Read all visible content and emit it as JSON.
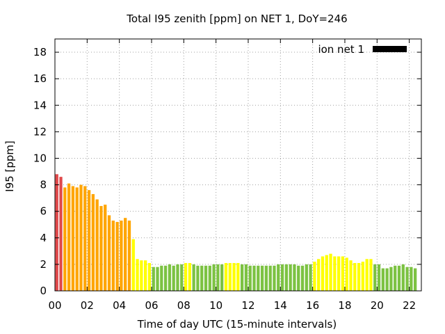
{
  "chart_data": {
    "type": "bar",
    "title": "Total I95 zenith [ppm] on NET 1, DoY=246",
    "xlabel": "Time of day UTC (15-minute intervals)",
    "ylabel": "I95 [ppm]",
    "xlim": [
      0,
      22.75
    ],
    "ylim": [
      0,
      19
    ],
    "yticks": [
      0,
      2,
      4,
      6,
      8,
      10,
      12,
      14,
      16,
      18
    ],
    "xticks": [
      0,
      2,
      4,
      6,
      8,
      10,
      12,
      14,
      16,
      18,
      20,
      22
    ],
    "xtick_labels": [
      "00",
      "02",
      "04",
      "06",
      "08",
      "10",
      "12",
      "14",
      "16",
      "18",
      "20",
      "22"
    ],
    "grid": true,
    "bar_interval_hours": 0.25,
    "legend": {
      "label": "ion net 1",
      "color": "#000000",
      "position": "top-right"
    },
    "colors": {
      "red": "#e0484a",
      "orange": "#ffa500",
      "yellow": "#ffff00",
      "green": "#7cc242"
    },
    "series": [
      {
        "name": "ion net 1",
        "values": [
          8.8,
          8.6,
          7.8,
          8.1,
          7.9,
          7.8,
          8.0,
          7.9,
          7.6,
          7.3,
          6.9,
          6.4,
          6.5,
          5.7,
          5.3,
          5.2,
          5.3,
          5.5,
          5.3,
          3.9,
          2.4,
          2.3,
          2.3,
          2.1,
          1.8,
          1.8,
          1.9,
          1.9,
          2.0,
          1.9,
          2.0,
          2.0,
          2.1,
          2.1,
          2.0,
          1.9,
          1.9,
          1.9,
          1.9,
          2.0,
          2.0,
          2.0,
          2.1,
          2.1,
          2.1,
          2.1,
          2.0,
          2.0,
          1.9,
          1.9,
          1.9,
          1.9,
          1.9,
          1.9,
          1.9,
          2.0,
          2.0,
          2.0,
          2.0,
          2.0,
          1.9,
          1.9,
          2.0,
          2.0,
          2.2,
          2.4,
          2.6,
          2.7,
          2.8,
          2.6,
          2.6,
          2.6,
          2.5,
          2.3,
          2.1,
          2.1,
          2.2,
          2.4,
          2.4,
          2.0,
          2.0,
          1.7,
          1.7,
          1.8,
          1.9,
          1.9,
          2.0,
          1.8,
          1.8,
          1.7
        ],
        "bar_colors": [
          "red",
          "red",
          "orange",
          "orange",
          "orange",
          "orange",
          "orange",
          "orange",
          "orange",
          "orange",
          "orange",
          "orange",
          "orange",
          "orange",
          "orange",
          "orange",
          "orange",
          "orange",
          "orange",
          "yellow",
          "yellow",
          "yellow",
          "yellow",
          "yellow",
          "green",
          "green",
          "green",
          "green",
          "green",
          "green",
          "green",
          "green",
          "yellow",
          "yellow",
          "green",
          "green",
          "green",
          "green",
          "green",
          "green",
          "green",
          "green",
          "yellow",
          "yellow",
          "yellow",
          "yellow",
          "green",
          "green",
          "green",
          "green",
          "green",
          "green",
          "green",
          "green",
          "green",
          "green",
          "green",
          "green",
          "green",
          "green",
          "green",
          "green",
          "green",
          "green",
          "yellow",
          "yellow",
          "yellow",
          "yellow",
          "yellow",
          "yellow",
          "yellow",
          "yellow",
          "yellow",
          "yellow",
          "yellow",
          "yellow",
          "yellow",
          "yellow",
          "yellow",
          "green",
          "green",
          "green",
          "green",
          "green",
          "green",
          "green",
          "green",
          "green",
          "green",
          "green"
        ]
      }
    ]
  }
}
